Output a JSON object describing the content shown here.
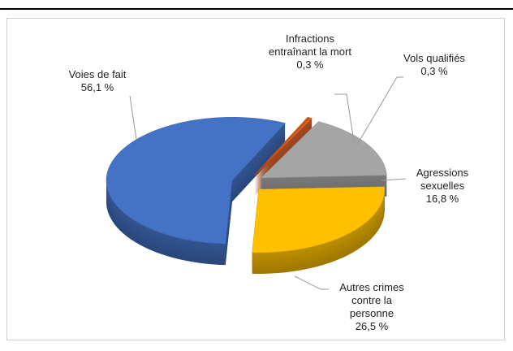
{
  "chart_data": {
    "type": "pie3d",
    "categories": [
      "Voies de fait",
      "Infractions entraînant la mort",
      "Vols qualifiés",
      "Agressions sexuelles",
      "Autres crimes contre la personne"
    ],
    "values": [
      56.1,
      0.3,
      0.3,
      16.8,
      26.5
    ],
    "value_labels": [
      "56,1 %",
      "0,3 %",
      "0,3 %",
      "16,8 %",
      "26,5 %"
    ],
    "colors": [
      "#4472c4",
      "#c55a11",
      "#e0622a",
      "#a5a5a5",
      "#ffc000"
    ]
  }
}
